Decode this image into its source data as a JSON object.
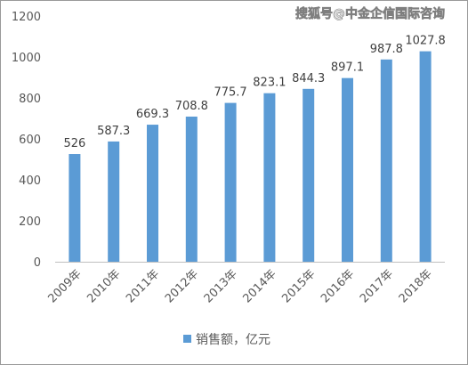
{
  "watermark": "搜狐号@中金企信国际咨询",
  "colors": {
    "bar": "#5b9bd5",
    "axis": "#bfbfbf",
    "text": "#595959"
  },
  "chart_data": {
    "type": "bar",
    "categories": [
      "2009年",
      "2010年",
      "2011年",
      "2012年",
      "2013年",
      "2014年",
      "2015年",
      "2016年",
      "2017年",
      "2018年"
    ],
    "series": [
      {
        "name": "销售额，亿元",
        "values": [
          526,
          587.3,
          669.3,
          708.8,
          775.7,
          823.1,
          844.3,
          897.1,
          987.8,
          1027.8
        ]
      }
    ],
    "data_labels": [
      "526",
      "587.3",
      "669.3",
      "708.8",
      "775.7",
      "823.1",
      "844.3",
      "897.1",
      "987.8",
      "1027.8"
    ],
    "y_ticks": [
      "0",
      "200",
      "400",
      "600",
      "800",
      "1000",
      "1200"
    ],
    "ylim": [
      0,
      1200
    ],
    "grid": false,
    "legend": "bottom",
    "title": "",
    "xlabel": "",
    "ylabel": ""
  }
}
